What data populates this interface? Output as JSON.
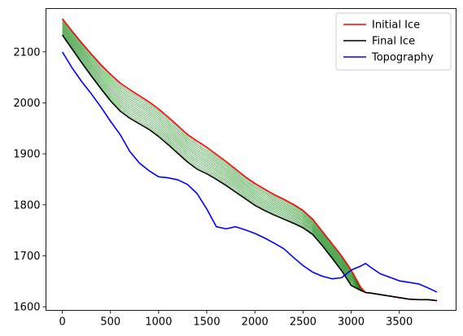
{
  "chart_data": {
    "type": "line",
    "title": "",
    "xlabel": "",
    "ylabel": "",
    "xlim": [
      -170,
      4090
    ],
    "ylim": [
      1593,
      2185
    ],
    "xticks": [
      0,
      500,
      1000,
      1500,
      2000,
      2500,
      3000,
      3500
    ],
    "yticks": [
      1600,
      1700,
      1800,
      1900,
      2000,
      2100
    ],
    "grid": false,
    "legend_position": "top-right",
    "colors": {
      "initial_ice": "#e41a1c",
      "final_ice": "#000000",
      "topography": "#0000ff",
      "intermediate": "#008000"
    },
    "legend": [
      {
        "label": "Initial Ice",
        "color": "#ff0000"
      },
      {
        "label": "Final Ice",
        "color": "#000000"
      },
      {
        "label": "Topography",
        "color": "#0000ff"
      }
    ],
    "x": [
      0,
      100,
      200,
      300,
      400,
      500,
      600,
      700,
      800,
      900,
      1000,
      1100,
      1200,
      1300,
      1400,
      1500,
      1600,
      1700,
      1800,
      1900,
      2000,
      2100,
      2200,
      2300,
      2400,
      2500,
      2600,
      2700,
      2800,
      2900,
      3000,
      3100,
      3150,
      3200,
      3300,
      3400,
      3500,
      3600,
      3700,
      3800,
      3890
    ],
    "series": [
      {
        "name": "Initial Ice",
        "color": "#ff0000",
        "values": [
          2165,
          2141,
          2118,
          2096,
          2075,
          2056,
          2039,
          2026,
          2014,
          2002,
          1988,
          1972,
          1955,
          1938,
          1925,
          1913,
          1899,
          1885,
          1870,
          1855,
          1842,
          1831,
          1820,
          1811,
          1801,
          1789,
          1772,
          1748,
          1724,
          1700,
          1672,
          1638,
          1628,
          1627,
          1624,
          1621,
          1618,
          1615,
          1614,
          1614,
          1612
        ]
      },
      {
        "name": "Final Ice",
        "color": "#000000",
        "values": [
          2133,
          2106,
          2079,
          2053,
          2028,
          2004,
          1984,
          1970,
          1959,
          1948,
          1934,
          1918,
          1901,
          1884,
          1870,
          1861,
          1850,
          1838,
          1825,
          1812,
          1799,
          1789,
          1780,
          1772,
          1764,
          1755,
          1742,
          1720,
          1696,
          1671,
          1642,
          1632,
          1628,
          1627,
          1624,
          1621,
          1618,
          1615,
          1614,
          1614,
          1612
        ]
      },
      {
        "name": "Topography",
        "color": "#0000ff",
        "values": [
          2100,
          2069,
          2042,
          2018,
          1992,
          1964,
          1938,
          1905,
          1882,
          1867,
          1855,
          1853,
          1849,
          1840,
          1822,
          1792,
          1757,
          1753,
          1757,
          1751,
          1744,
          1735,
          1725,
          1714,
          1697,
          1681,
          1668,
          1660,
          1655,
          1657,
          1672,
          1680,
          1685,
          1678,
          1665,
          1658,
          1651,
          1648,
          1645,
          1637,
          1629
        ]
      }
    ]
  }
}
